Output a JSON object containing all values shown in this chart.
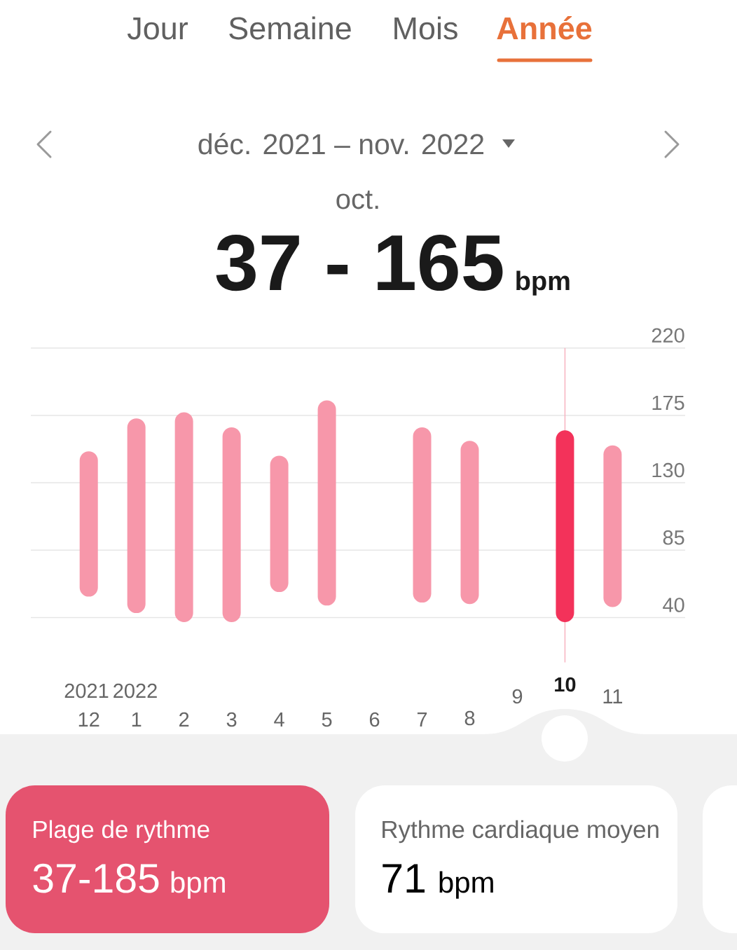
{
  "chart_data": {
    "type": "bar",
    "title": "déc. 2021 – nov. 2022",
    "categories": [
      "12",
      "1",
      "2",
      "3",
      "4",
      "5",
      "6",
      "7",
      "8",
      "9",
      "10",
      "11"
    ],
    "base": [
      54,
      43,
      37,
      37,
      57,
      48,
      null,
      50,
      49,
      null,
      37,
      47
    ],
    "values": [
      97,
      130,
      140,
      130,
      91,
      137,
      null,
      117,
      109,
      null,
      128,
      108
    ],
    "colors": [
      "#f797aa",
      "#f797aa",
      "#f797aa",
      "#f797aa",
      "#f797aa",
      "#f797aa",
      "#f797aa",
      "#f797aa",
      "#f797aa",
      "#f797aa",
      "#f3325a",
      "#f797aa"
    ],
    "ylim": [
      10,
      220
    ],
    "yticks": [
      40,
      85,
      130,
      175,
      220
    ],
    "grid": "y",
    "ref_lines": [
      {
        "axis": "x",
        "value": "10",
        "color": "#f7b3c0"
      }
    ],
    "annotations": [
      "Jour",
      "Semaine",
      "Mois",
      "Année",
      "oct.",
      "37 - 165",
      "bpm",
      "Plage de rythme",
      "37-185",
      "bpm",
      "Rythme cardiaque moyen",
      "71",
      "bpm",
      "2021",
      "2022"
    ]
  }
}
